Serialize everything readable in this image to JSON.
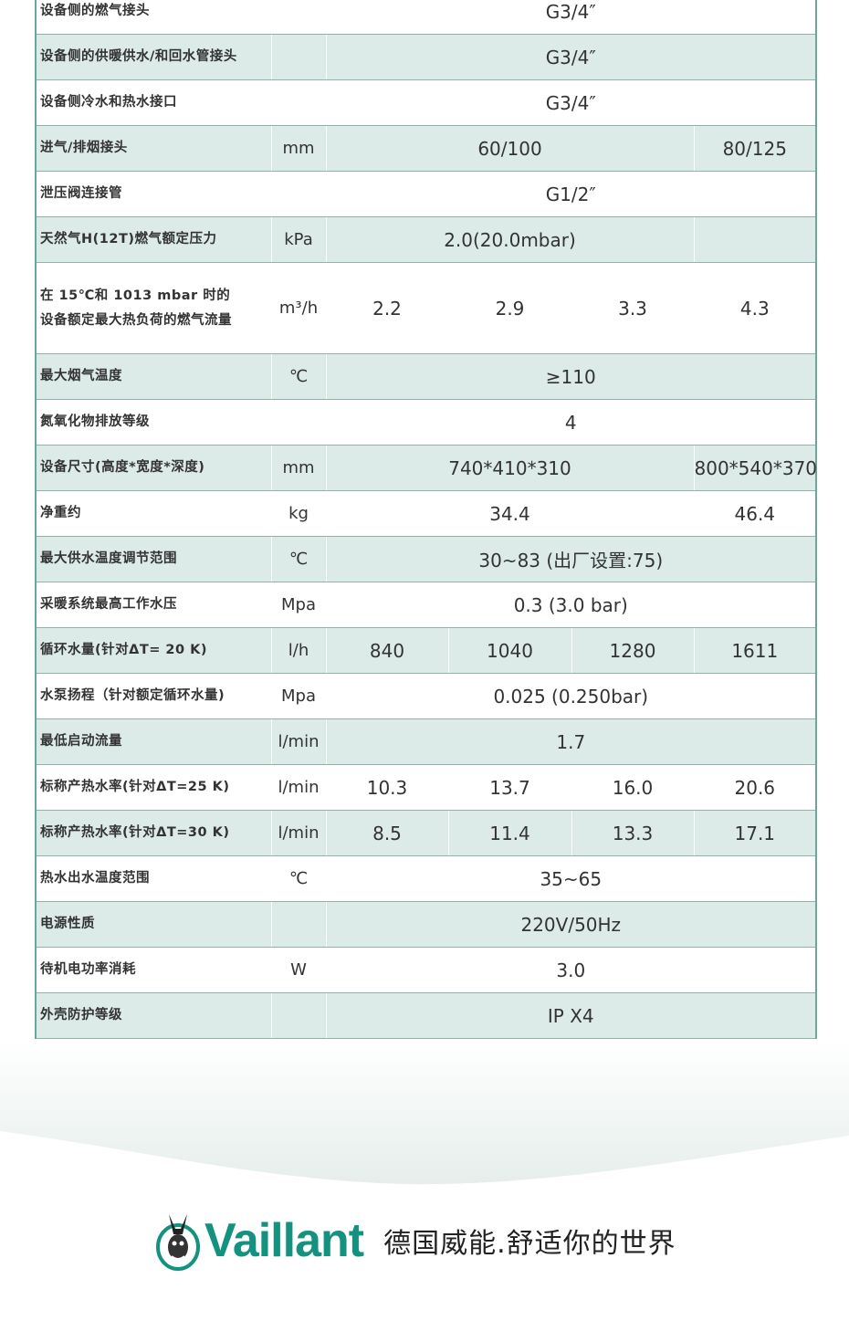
{
  "rows": [
    {
      "label": "设备侧的燃气接头",
      "unit": "",
      "cells": [
        {
          "v": "G3/4″",
          "span": 4
        }
      ]
    },
    {
      "label": "设备侧的供暖供水/和回水管接头",
      "unit": "",
      "cells": [
        {
          "v": "G3/4″",
          "span": 4
        }
      ]
    },
    {
      "label": "设备侧冷水和热水接口",
      "unit": "",
      "cells": [
        {
          "v": "G3/4″",
          "span": 4
        }
      ]
    },
    {
      "label": "进气/排烟接头",
      "unit": "mm",
      "cells": [
        {
          "v": "60/100",
          "span": 3
        },
        {
          "v": "80/125",
          "span": 1
        }
      ]
    },
    {
      "label": "泄压阀连接管",
      "unit": "",
      "cells": [
        {
          "v": "G1/2″",
          "span": 4
        }
      ]
    },
    {
      "label": "天然气H(12T)燃气额定压力",
      "unit": "kPa",
      "cells": [
        {
          "v": "2.0(20.0mbar)",
          "span": 3
        },
        {
          "v": "",
          "span": 1
        }
      ]
    },
    {
      "label": "在 15℃和 1013 mbar 时的\n设备额定最大热负荷的燃气流量",
      "unit": "m³/h",
      "tall": true,
      "cells": [
        {
          "v": "2.2",
          "span": 1
        },
        {
          "v": "2.9",
          "span": 1
        },
        {
          "v": "3.3",
          "span": 1
        },
        {
          "v": "4.3",
          "span": 1
        }
      ]
    },
    {
      "label": "最大烟气温度",
      "unit": "℃",
      "cells": [
        {
          "v": "≥110",
          "span": 4
        }
      ]
    },
    {
      "label": "氮氧化物排放等级",
      "unit": "",
      "cells": [
        {
          "v": "4",
          "span": 4
        }
      ]
    },
    {
      "label": "设备尺寸(高度*宽度*深度)",
      "unit": "mm",
      "cells": [
        {
          "v": "740*410*310",
          "span": 3
        },
        {
          "v": "800*540*370",
          "span": 1
        }
      ]
    },
    {
      "label": "净重约",
      "unit": "kg",
      "cells": [
        {
          "v": "34.4",
          "span": 3
        },
        {
          "v": "46.4",
          "span": 1
        }
      ]
    },
    {
      "label": "最大供水温度调节范围",
      "unit": "℃",
      "cells": [
        {
          "v": "30~83 (出厂设置:75)",
          "span": 4
        }
      ]
    },
    {
      "label": "采暖系统最高工作水压",
      "unit": "Mpa",
      "cells": [
        {
          "v": "0.3 (3.0 bar)",
          "span": 4
        }
      ]
    },
    {
      "label": "循环水量(针对ΔT= 20 K)",
      "unit": "l/h",
      "cells": [
        {
          "v": "840",
          "span": 1
        },
        {
          "v": "1040",
          "span": 1
        },
        {
          "v": "1280",
          "span": 1
        },
        {
          "v": "1611",
          "span": 1
        }
      ]
    },
    {
      "label": "水泵扬程（针对额定循环水量)",
      "unit": "Mpa",
      "cells": [
        {
          "v": "0.025 (0.250bar)",
          "span": 4
        }
      ]
    },
    {
      "label": "最低启动流量",
      "unit": "l/min",
      "cells": [
        {
          "v": "1.7",
          "span": 4
        }
      ]
    },
    {
      "label": "标称产热水率(针对ΔT=25 K)",
      "unit": "l/min",
      "cells": [
        {
          "v": "10.3",
          "span": 1
        },
        {
          "v": "13.7",
          "span": 1
        },
        {
          "v": "16.0",
          "span": 1
        },
        {
          "v": "20.6",
          "span": 1
        }
      ]
    },
    {
      "label": "标称产热水率(针对ΔT=30 K)",
      "unit": "l/min",
      "cells": [
        {
          "v": "8.5",
          "span": 1
        },
        {
          "v": "11.4",
          "span": 1
        },
        {
          "v": "13.3",
          "span": 1
        },
        {
          "v": "17.1",
          "span": 1
        }
      ]
    },
    {
      "label": "热水出水温度范围",
      "unit": "℃",
      "cells": [
        {
          "v": "35~65",
          "span": 4
        }
      ]
    },
    {
      "label": "电源性质",
      "unit": "",
      "cells": [
        {
          "v": "220V/50Hz",
          "span": 4
        }
      ]
    },
    {
      "label": "待机电功率消耗",
      "unit": "W",
      "cells": [
        {
          "v": "3.0",
          "span": 4
        }
      ]
    },
    {
      "label": "外壳防护等级",
      "unit": "",
      "cells": [
        {
          "v": "IP X4",
          "span": 4
        }
      ]
    }
  ],
  "footer": {
    "brand": "Vaillant",
    "slogan": "德国威能.舒适你的世界",
    "brand_color": "#14917f"
  },
  "colors": {
    "row_tint": "#dcebe8",
    "border": "#8fb3ab"
  }
}
